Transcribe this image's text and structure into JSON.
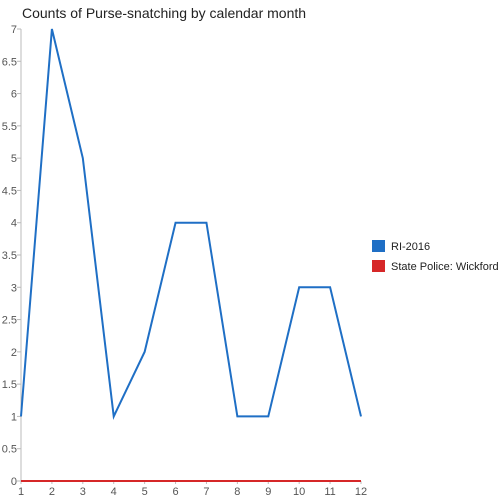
{
  "chart_data": {
    "type": "line",
    "title": "Counts of Purse-snatching by calendar month",
    "xlabel": "",
    "ylabel": "",
    "x": [
      1,
      2,
      3,
      4,
      5,
      6,
      7,
      8,
      9,
      10,
      11,
      12
    ],
    "x_ticks": [
      "1",
      "2",
      "3",
      "4",
      "5",
      "6",
      "7",
      "8",
      "9",
      "10",
      "11",
      "12"
    ],
    "y_ticks": [
      "0",
      "0.5",
      "1",
      "1.5",
      "2",
      "2.5",
      "3",
      "3.5",
      "4",
      "4.5",
      "5",
      "5.5",
      "6",
      "6.5",
      "7"
    ],
    "xlim": [
      1,
      12
    ],
    "ylim": [
      0,
      7
    ],
    "grid": false,
    "legend_position": "right",
    "series": [
      {
        "name": "RI-2016",
        "color": "#1f6fc5",
        "values": [
          1,
          7,
          5,
          1,
          2,
          4,
          4,
          1,
          1,
          3,
          3,
          1
        ]
      },
      {
        "name": "State Police: Wickford",
        "color": "#d62728",
        "values": [
          0,
          0,
          0,
          0,
          0,
          0,
          0,
          0,
          0,
          0,
          0,
          0
        ]
      }
    ]
  }
}
